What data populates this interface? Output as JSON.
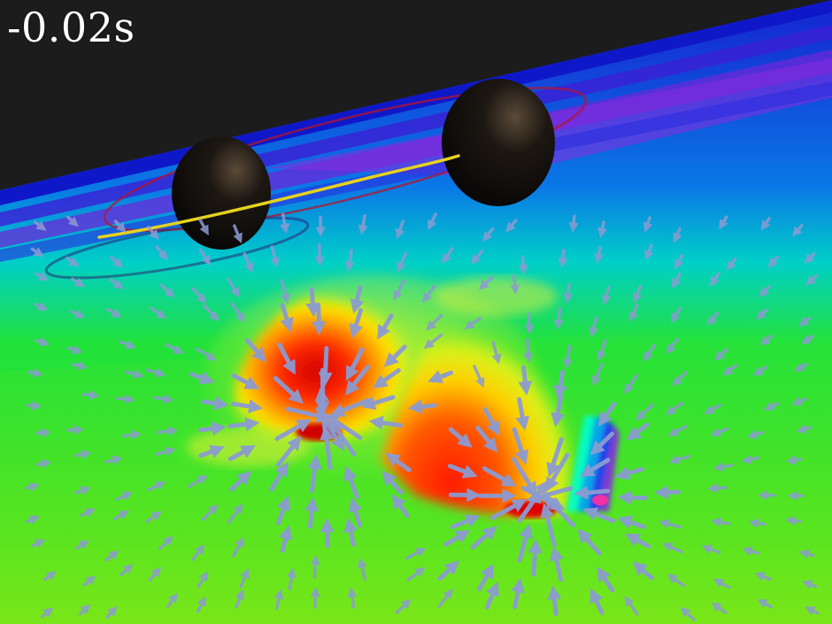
{
  "timestamp": {
    "text": "-0.02s"
  },
  "scene": {
    "subject": "binary-black-hole-merger-visualization",
    "objects": [
      "black-hole",
      "black-hole",
      "orbit-trail",
      "warped-surface",
      "flow-arrows"
    ]
  },
  "colors": {
    "background": "#1c1c1c",
    "far_surface": "#1a20d8",
    "band_violet": "#7a2ad8",
    "surface_green": "#22e01e",
    "well_red": "#ff2000",
    "well_yellow": "#ffe600",
    "arrows": "#8c9bd2",
    "orbit_trail": "#e6d21e",
    "orbit_ring": "#b4142d",
    "black_hole": "#0a0a0a",
    "text": "#ffffff"
  }
}
